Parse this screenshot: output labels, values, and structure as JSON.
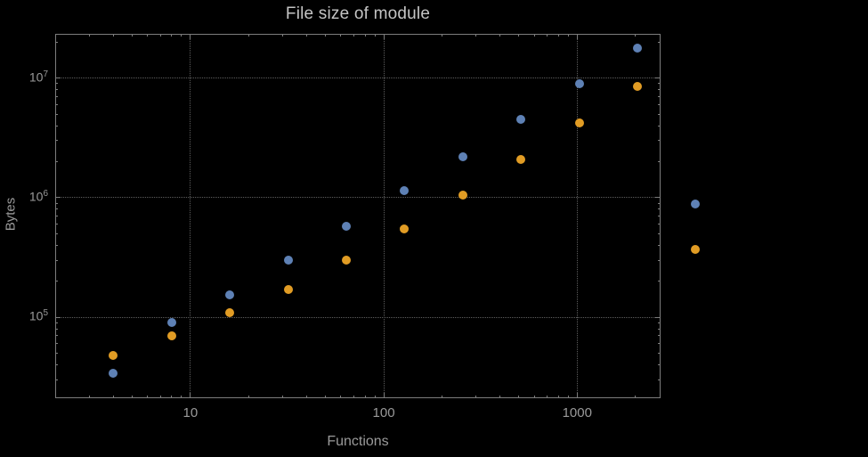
{
  "chart_data": {
    "type": "scatter",
    "title": "File size of module",
    "xlabel": "Functions",
    "ylabel": "Bytes",
    "xscale": "log",
    "yscale": "log",
    "xlim": [
      2.0,
      2700
    ],
    "ylim": [
      21000,
      23500000
    ],
    "grid": true,
    "legend": false,
    "x": [
      4,
      8,
      16,
      32,
      64,
      128,
      256,
      512,
      1024,
      2048,
      4096
    ],
    "series": [
      {
        "name": "series-blue",
        "color": "#5e81b5",
        "values": [
          34000,
          90000,
          155000,
          300000,
          580000,
          1150000,
          2200000,
          4500000,
          9000000,
          18000000,
          880000
        ]
      },
      {
        "name": "series-orange",
        "color": "#e19c24",
        "values": [
          48000,
          70000,
          110000,
          170000,
          300000,
          550000,
          1050000,
          2100000,
          4200000,
          8500000,
          370000
        ]
      }
    ],
    "x_ticks": [
      10,
      100,
      1000
    ],
    "x_tick_labels": [
      "10",
      "100",
      "1000"
    ],
    "y_tick_base": "10",
    "y_tick_exponents": [
      5,
      6,
      7
    ],
    "colors": {
      "background": "#000000",
      "frame": "#7d7d7d",
      "grid": "#5e5e5e",
      "text": "#9a9a9a",
      "title": "#c4c4c4"
    }
  }
}
